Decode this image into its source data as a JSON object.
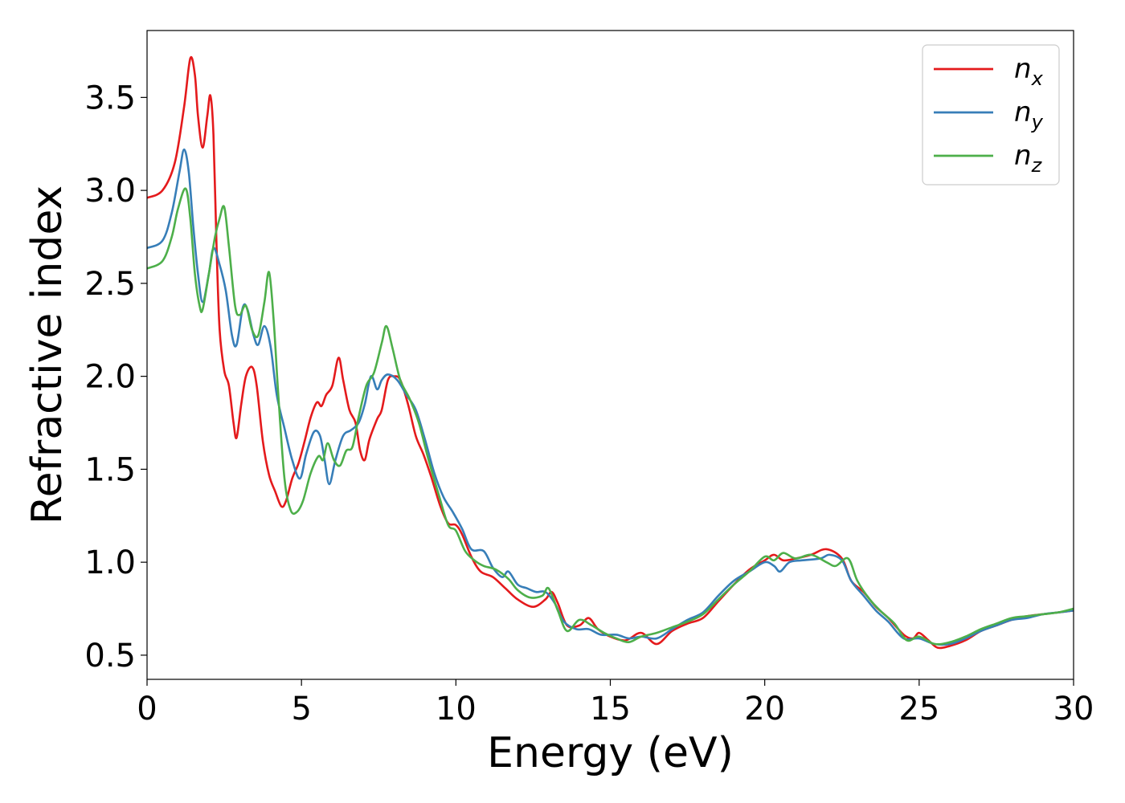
{
  "chart_data": {
    "type": "line",
    "title": "",
    "xlabel": "Energy (eV)",
    "ylabel": "Refractive index",
    "xlim": [
      0,
      30
    ],
    "ylim": [
      0.37,
      3.86
    ],
    "xticks": [
      0,
      5,
      10,
      15,
      20,
      25,
      30
    ],
    "xtick_labels": [
      "0",
      "5",
      "10",
      "15",
      "20",
      "25",
      "30"
    ],
    "yticks": [
      0.5,
      1.0,
      1.5,
      2.0,
      2.5,
      3.0,
      3.5
    ],
    "ytick_labels": [
      "0.5",
      "1.0",
      "1.5",
      "2.0",
      "2.5",
      "3.0",
      "3.5"
    ],
    "grid": false,
    "legend_position": "top-right",
    "series": [
      {
        "name": "n_x",
        "label_base": "n",
        "label_sub": "x",
        "color": "#e41a1c",
        "points": [
          [
            0,
            2.96
          ],
          [
            0.5,
            3.0
          ],
          [
            0.9,
            3.15
          ],
          [
            1.2,
            3.45
          ],
          [
            1.4,
            3.71
          ],
          [
            1.55,
            3.62
          ],
          [
            1.65,
            3.4
          ],
          [
            1.8,
            3.23
          ],
          [
            1.95,
            3.4
          ],
          [
            2.05,
            3.51
          ],
          [
            2.15,
            3.3
          ],
          [
            2.25,
            2.7
          ],
          [
            2.35,
            2.25
          ],
          [
            2.5,
            2.03
          ],
          [
            2.65,
            1.95
          ],
          [
            2.8,
            1.75
          ],
          [
            2.9,
            1.67
          ],
          [
            3.05,
            1.85
          ],
          [
            3.2,
            2.0
          ],
          [
            3.4,
            2.05
          ],
          [
            3.55,
            1.95
          ],
          [
            3.75,
            1.65
          ],
          [
            3.95,
            1.47
          ],
          [
            4.15,
            1.38
          ],
          [
            4.35,
            1.3
          ],
          [
            4.5,
            1.33
          ],
          [
            4.7,
            1.45
          ],
          [
            4.9,
            1.53
          ],
          [
            5.1,
            1.65
          ],
          [
            5.3,
            1.78
          ],
          [
            5.5,
            1.86
          ],
          [
            5.65,
            1.84
          ],
          [
            5.8,
            1.9
          ],
          [
            6.0,
            1.95
          ],
          [
            6.2,
            2.1
          ],
          [
            6.35,
            1.98
          ],
          [
            6.55,
            1.82
          ],
          [
            6.75,
            1.75
          ],
          [
            6.9,
            1.6
          ],
          [
            7.05,
            1.55
          ],
          [
            7.2,
            1.66
          ],
          [
            7.45,
            1.77
          ],
          [
            7.6,
            1.82
          ],
          [
            7.8,
            1.98
          ],
          [
            8.0,
            2.0
          ],
          [
            8.2,
            1.98
          ],
          [
            8.45,
            1.85
          ],
          [
            8.7,
            1.68
          ],
          [
            8.95,
            1.58
          ],
          [
            9.2,
            1.46
          ],
          [
            9.5,
            1.3
          ],
          [
            9.75,
            1.21
          ],
          [
            10.0,
            1.2
          ],
          [
            10.2,
            1.15
          ],
          [
            10.5,
            1.03
          ],
          [
            10.8,
            0.95
          ],
          [
            11.2,
            0.92
          ],
          [
            11.6,
            0.86
          ],
          [
            12.0,
            0.8
          ],
          [
            12.5,
            0.76
          ],
          [
            12.9,
            0.8
          ],
          [
            13.1,
            0.84
          ],
          [
            13.3,
            0.78
          ],
          [
            13.6,
            0.66
          ],
          [
            14.0,
            0.66
          ],
          [
            14.3,
            0.7
          ],
          [
            14.6,
            0.64
          ],
          [
            15.0,
            0.6
          ],
          [
            15.5,
            0.58
          ],
          [
            16.0,
            0.62
          ],
          [
            16.5,
            0.56
          ],
          [
            17.0,
            0.63
          ],
          [
            17.5,
            0.67
          ],
          [
            18.0,
            0.7
          ],
          [
            18.5,
            0.79
          ],
          [
            19.0,
            0.88
          ],
          [
            19.5,
            0.96
          ],
          [
            20.0,
            1.01
          ],
          [
            20.3,
            1.04
          ],
          [
            20.6,
            1.01
          ],
          [
            21.0,
            1.02
          ],
          [
            21.5,
            1.04
          ],
          [
            22.0,
            1.07
          ],
          [
            22.5,
            1.02
          ],
          [
            22.8,
            0.9
          ],
          [
            23.2,
            0.84
          ],
          [
            23.6,
            0.76
          ],
          [
            24.0,
            0.7
          ],
          [
            24.5,
            0.61
          ],
          [
            24.8,
            0.59
          ],
          [
            25.0,
            0.62
          ],
          [
            25.3,
            0.58
          ],
          [
            25.6,
            0.54
          ],
          [
            26.0,
            0.55
          ],
          [
            26.5,
            0.58
          ],
          [
            27.0,
            0.63
          ],
          [
            27.5,
            0.66
          ],
          [
            28.0,
            0.69
          ],
          [
            28.5,
            0.71
          ],
          [
            29.0,
            0.72
          ],
          [
            29.5,
            0.73
          ],
          [
            30.0,
            0.74
          ]
        ]
      },
      {
        "name": "n_y",
        "label_base": "n",
        "label_sub": "y",
        "color": "#377eb8",
        "points": [
          [
            0,
            2.69
          ],
          [
            0.5,
            2.73
          ],
          [
            0.8,
            2.88
          ],
          [
            1.05,
            3.1
          ],
          [
            1.2,
            3.22
          ],
          [
            1.35,
            3.1
          ],
          [
            1.5,
            2.8
          ],
          [
            1.65,
            2.55
          ],
          [
            1.8,
            2.4
          ],
          [
            2.0,
            2.55
          ],
          [
            2.15,
            2.69
          ],
          [
            2.35,
            2.6
          ],
          [
            2.55,
            2.46
          ],
          [
            2.75,
            2.22
          ],
          [
            2.9,
            2.17
          ],
          [
            3.1,
            2.37
          ],
          [
            3.25,
            2.36
          ],
          [
            3.45,
            2.22
          ],
          [
            3.6,
            2.17
          ],
          [
            3.8,
            2.27
          ],
          [
            4.0,
            2.16
          ],
          [
            4.2,
            1.9
          ],
          [
            4.45,
            1.72
          ],
          [
            4.7,
            1.55
          ],
          [
            4.95,
            1.45
          ],
          [
            5.15,
            1.58
          ],
          [
            5.4,
            1.7
          ],
          [
            5.6,
            1.68
          ],
          [
            5.75,
            1.55
          ],
          [
            5.9,
            1.42
          ],
          [
            6.1,
            1.55
          ],
          [
            6.35,
            1.68
          ],
          [
            6.6,
            1.71
          ],
          [
            6.85,
            1.75
          ],
          [
            7.05,
            1.85
          ],
          [
            7.25,
            2.0
          ],
          [
            7.45,
            1.93
          ],
          [
            7.6,
            1.98
          ],
          [
            7.8,
            2.01
          ],
          [
            8.1,
            1.98
          ],
          [
            8.4,
            1.9
          ],
          [
            8.7,
            1.82
          ],
          [
            9.0,
            1.66
          ],
          [
            9.3,
            1.48
          ],
          [
            9.6,
            1.35
          ],
          [
            9.9,
            1.27
          ],
          [
            10.2,
            1.18
          ],
          [
            10.5,
            1.07
          ],
          [
            10.9,
            1.06
          ],
          [
            11.2,
            0.97
          ],
          [
            11.5,
            0.92
          ],
          [
            11.7,
            0.95
          ],
          [
            12.0,
            0.88
          ],
          [
            12.3,
            0.86
          ],
          [
            12.6,
            0.84
          ],
          [
            12.9,
            0.84
          ],
          [
            13.2,
            0.78
          ],
          [
            13.5,
            0.68
          ],
          [
            13.9,
            0.64
          ],
          [
            14.3,
            0.64
          ],
          [
            14.7,
            0.61
          ],
          [
            15.2,
            0.61
          ],
          [
            15.6,
            0.59
          ],
          [
            16.0,
            0.6
          ],
          [
            16.5,
            0.59
          ],
          [
            17.0,
            0.64
          ],
          [
            17.5,
            0.69
          ],
          [
            18.0,
            0.73
          ],
          [
            18.5,
            0.82
          ],
          [
            19.0,
            0.9
          ],
          [
            19.5,
            0.95
          ],
          [
            20.0,
            1.0
          ],
          [
            20.3,
            0.98
          ],
          [
            20.5,
            0.95
          ],
          [
            20.8,
            1.0
          ],
          [
            21.2,
            1.01
          ],
          [
            21.8,
            1.02
          ],
          [
            22.1,
            1.04
          ],
          [
            22.5,
            1.01
          ],
          [
            22.8,
            0.9
          ],
          [
            23.2,
            0.82
          ],
          [
            23.6,
            0.74
          ],
          [
            24.0,
            0.68
          ],
          [
            24.5,
            0.59
          ],
          [
            25.0,
            0.59
          ],
          [
            25.5,
            0.56
          ],
          [
            26.0,
            0.56
          ],
          [
            26.5,
            0.59
          ],
          [
            27.0,
            0.63
          ],
          [
            27.5,
            0.66
          ],
          [
            28.0,
            0.69
          ],
          [
            28.5,
            0.7
          ],
          [
            29.0,
            0.72
          ],
          [
            29.5,
            0.73
          ],
          [
            30.0,
            0.74
          ]
        ]
      },
      {
        "name": "n_z",
        "label_base": "n",
        "label_sub": "z",
        "color": "#4daf4a",
        "points": [
          [
            0,
            2.58
          ],
          [
            0.5,
            2.62
          ],
          [
            0.8,
            2.75
          ],
          [
            1.0,
            2.9
          ],
          [
            1.25,
            3.01
          ],
          [
            1.4,
            2.85
          ],
          [
            1.55,
            2.55
          ],
          [
            1.7,
            2.38
          ],
          [
            1.8,
            2.36
          ],
          [
            2.0,
            2.55
          ],
          [
            2.2,
            2.75
          ],
          [
            2.35,
            2.85
          ],
          [
            2.5,
            2.91
          ],
          [
            2.65,
            2.7
          ],
          [
            2.85,
            2.38
          ],
          [
            3.0,
            2.33
          ],
          [
            3.2,
            2.38
          ],
          [
            3.4,
            2.25
          ],
          [
            3.6,
            2.22
          ],
          [
            3.8,
            2.4
          ],
          [
            3.95,
            2.56
          ],
          [
            4.1,
            2.3
          ],
          [
            4.25,
            1.9
          ],
          [
            4.45,
            1.45
          ],
          [
            4.65,
            1.28
          ],
          [
            4.85,
            1.27
          ],
          [
            5.05,
            1.33
          ],
          [
            5.3,
            1.48
          ],
          [
            5.55,
            1.57
          ],
          [
            5.7,
            1.55
          ],
          [
            5.85,
            1.64
          ],
          [
            6.05,
            1.55
          ],
          [
            6.25,
            1.52
          ],
          [
            6.45,
            1.6
          ],
          [
            6.65,
            1.62
          ],
          [
            6.85,
            1.78
          ],
          [
            7.1,
            1.95
          ],
          [
            7.35,
            2.02
          ],
          [
            7.6,
            2.18
          ],
          [
            7.75,
            2.27
          ],
          [
            7.95,
            2.15
          ],
          [
            8.2,
            1.98
          ],
          [
            8.5,
            1.88
          ],
          [
            8.8,
            1.75
          ],
          [
            9.1,
            1.56
          ],
          [
            9.45,
            1.36
          ],
          [
            9.75,
            1.2
          ],
          [
            10.0,
            1.17
          ],
          [
            10.3,
            1.06
          ],
          [
            10.6,
            1.01
          ],
          [
            10.9,
            0.98
          ],
          [
            11.3,
            0.96
          ],
          [
            11.7,
            0.91
          ],
          [
            12.0,
            0.85
          ],
          [
            12.4,
            0.81
          ],
          [
            12.8,
            0.82
          ],
          [
            13.0,
            0.86
          ],
          [
            13.3,
            0.74
          ],
          [
            13.6,
            0.63
          ],
          [
            14.0,
            0.69
          ],
          [
            14.4,
            0.66
          ],
          [
            14.8,
            0.62
          ],
          [
            15.2,
            0.59
          ],
          [
            15.6,
            0.57
          ],
          [
            16.0,
            0.6
          ],
          [
            16.5,
            0.62
          ],
          [
            17.0,
            0.65
          ],
          [
            17.5,
            0.68
          ],
          [
            18.0,
            0.72
          ],
          [
            18.5,
            0.8
          ],
          [
            19.0,
            0.88
          ],
          [
            19.5,
            0.95
          ],
          [
            20.0,
            1.03
          ],
          [
            20.3,
            1.01
          ],
          [
            20.6,
            1.05
          ],
          [
            21.0,
            1.02
          ],
          [
            21.5,
            1.04
          ],
          [
            22.0,
            1.0
          ],
          [
            22.3,
            0.98
          ],
          [
            22.7,
            1.02
          ],
          [
            23.0,
            0.9
          ],
          [
            23.4,
            0.8
          ],
          [
            23.8,
            0.73
          ],
          [
            24.2,
            0.67
          ],
          [
            24.6,
            0.58
          ],
          [
            25.0,
            0.6
          ],
          [
            25.5,
            0.56
          ],
          [
            26.0,
            0.57
          ],
          [
            26.5,
            0.6
          ],
          [
            27.0,
            0.64
          ],
          [
            27.5,
            0.67
          ],
          [
            28.0,
            0.7
          ],
          [
            28.5,
            0.71
          ],
          [
            29.0,
            0.72
          ],
          [
            29.5,
            0.73
          ],
          [
            30.0,
            0.75
          ]
        ]
      }
    ]
  }
}
